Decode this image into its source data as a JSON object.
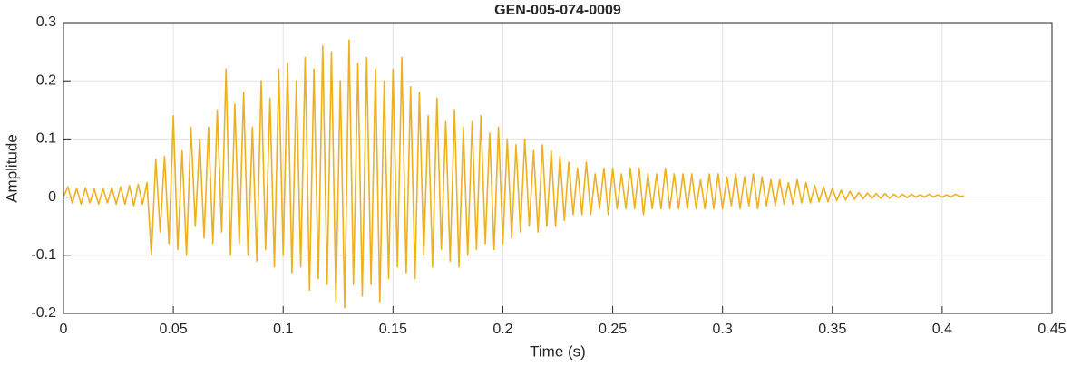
{
  "chart_data": {
    "type": "line",
    "title": "GEN-005-074-0009",
    "x_label": "Time (s)",
    "y_label": "Amplitude",
    "color": "#EDB120",
    "grid": true,
    "xlim": [
      0,
      0.45
    ],
    "xticks": [
      0,
      0.05,
      0.1,
      0.15,
      0.2,
      0.25,
      0.3,
      0.35,
      0.4,
      0.45
    ],
    "ylim": [
      -0.2,
      0.3
    ],
    "yticks": [
      -0.2,
      -0.1,
      0,
      0.1,
      0.2,
      0.3
    ],
    "x": [
      0,
      0.002,
      0.004,
      0.006,
      0.008,
      0.01,
      0.012,
      0.014,
      0.016,
      0.018,
      0.02,
      0.022,
      0.024,
      0.026,
      0.028,
      0.03,
      0.032,
      0.034,
      0.036,
      0.038,
      0.04,
      0.042,
      0.044,
      0.046,
      0.048,
      0.05,
      0.052,
      0.054,
      0.056,
      0.058,
      0.06,
      0.062,
      0.064,
      0.066,
      0.068,
      0.07,
      0.072,
      0.074,
      0.076,
      0.078,
      0.08,
      0.082,
      0.084,
      0.086,
      0.088,
      0.09,
      0.092,
      0.094,
      0.096,
      0.098,
      0.1,
      0.102,
      0.104,
      0.106,
      0.108,
      0.11,
      0.112,
      0.114,
      0.116,
      0.118,
      0.12,
      0.122,
      0.124,
      0.126,
      0.128,
      0.13,
      0.132,
      0.134,
      0.136,
      0.138,
      0.14,
      0.142,
      0.144,
      0.146,
      0.148,
      0.15,
      0.152,
      0.154,
      0.156,
      0.158,
      0.16,
      0.162,
      0.164,
      0.166,
      0.168,
      0.17,
      0.172,
      0.174,
      0.176,
      0.178,
      0.18,
      0.182,
      0.184,
      0.186,
      0.188,
      0.19,
      0.192,
      0.194,
      0.196,
      0.198,
      0.2,
      0.202,
      0.204,
      0.206,
      0.208,
      0.21,
      0.212,
      0.214,
      0.216,
      0.218,
      0.22,
      0.222,
      0.224,
      0.226,
      0.228,
      0.23,
      0.232,
      0.234,
      0.236,
      0.238,
      0.24,
      0.242,
      0.244,
      0.246,
      0.248,
      0.25,
      0.252,
      0.254,
      0.256,
      0.258,
      0.26,
      0.262,
      0.264,
      0.266,
      0.268,
      0.27,
      0.272,
      0.274,
      0.276,
      0.278,
      0.28,
      0.282,
      0.284,
      0.286,
      0.288,
      0.29,
      0.292,
      0.294,
      0.296,
      0.298,
      0.3,
      0.302,
      0.304,
      0.306,
      0.308,
      0.31,
      0.312,
      0.314,
      0.316,
      0.318,
      0.32,
      0.322,
      0.324,
      0.326,
      0.328,
      0.33,
      0.332,
      0.334,
      0.336,
      0.338,
      0.34,
      0.342,
      0.344,
      0.346,
      0.348,
      0.35,
      0.352,
      0.354,
      0.356,
      0.358,
      0.36,
      0.362,
      0.364,
      0.366,
      0.368,
      0.37,
      0.372,
      0.374,
      0.376,
      0.378,
      0.38,
      0.382,
      0.384,
      0.386,
      0.388,
      0.39,
      0.392,
      0.394,
      0.396,
      0.398,
      0.4,
      0.402,
      0.404,
      0.406,
      0.408,
      0.41
    ],
    "values": [
      0,
      0.018,
      -0.01,
      0.015,
      -0.012,
      0.016,
      -0.01,
      0.014,
      -0.012,
      0.015,
      -0.01,
      0.016,
      -0.012,
      0.018,
      -0.012,
      0.02,
      -0.015,
      0.022,
      -0.012,
      0.025,
      -0.1,
      0.065,
      -0.06,
      0.07,
      -0.08,
      0.14,
      -0.09,
      0.08,
      -0.1,
      0.12,
      -0.05,
      0.1,
      -0.07,
      0.12,
      -0.08,
      0.15,
      -0.06,
      0.22,
      -0.1,
      0.16,
      -0.08,
      0.18,
      -0.1,
      0.12,
      -0.11,
      0.2,
      -0.09,
      0.17,
      -0.12,
      0.22,
      -0.1,
      0.23,
      -0.13,
      0.2,
      -0.12,
      0.24,
      -0.16,
      0.22,
      -0.14,
      0.26,
      -0.15,
      0.25,
      -0.18,
      0.2,
      -0.19,
      0.27,
      -0.15,
      0.23,
      -0.17,
      0.24,
      -0.15,
      0.22,
      -0.18,
      0.2,
      -0.14,
      0.22,
      -0.12,
      0.24,
      -0.13,
      0.19,
      -0.14,
      0.18,
      -0.1,
      0.14,
      -0.12,
      0.17,
      -0.09,
      0.13,
      -0.11,
      0.15,
      -0.12,
      0.12,
      -0.1,
      0.13,
      -0.09,
      0.14,
      -0.08,
      0.11,
      -0.09,
      0.12,
      -0.08,
      0.1,
      -0.07,
      0.09,
      -0.06,
      0.1,
      -0.05,
      0.08,
      -0.06,
      0.09,
      -0.05,
      0.08,
      -0.05,
      0.07,
      -0.04,
      0.06,
      -0.03,
      0.05,
      -0.03,
      0.06,
      -0.03,
      0.04,
      -0.02,
      0.05,
      -0.03,
      0.05,
      -0.02,
      0.04,
      -0.02,
      0.05,
      -0.02,
      0.05,
      -0.03,
      0.04,
      -0.02,
      0.04,
      -0.02,
      0.05,
      -0.02,
      0.04,
      -0.02,
      0.04,
      -0.02,
      0.04,
      -0.02,
      0.03,
      -0.02,
      0.04,
      -0.02,
      0.04,
      -0.02,
      0.035,
      -0.015,
      0.04,
      -0.02,
      0.035,
      -0.015,
      0.04,
      -0.02,
      0.035,
      -0.015,
      0.03,
      -0.015,
      0.03,
      -0.012,
      0.025,
      -0.012,
      0.03,
      -0.01,
      0.025,
      -0.01,
      0.02,
      -0.008,
      0.018,
      -0.008,
      0.015,
      -0.006,
      0.012,
      -0.005,
      0.01,
      -0.004,
      0.008,
      -0.003,
      0.007,
      -0.002,
      0.006,
      -0.002,
      0.006,
      -0.002,
      0.005,
      -0.001,
      0.005,
      -0.001,
      0.005,
      0,
      0.004,
      0,
      0.005,
      0,
      0.004,
      0,
      0.004,
      0,
      0.005,
      0.001,
      0.002
    ]
  }
}
